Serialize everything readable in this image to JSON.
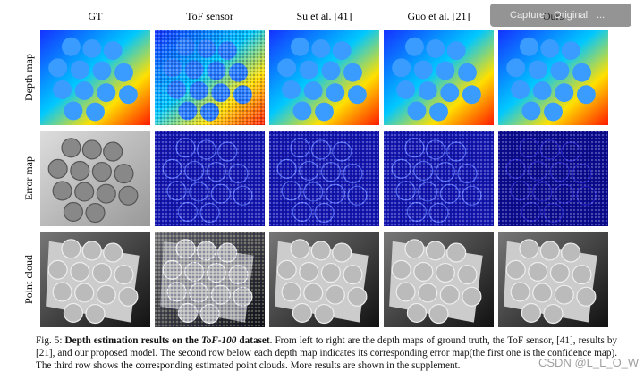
{
  "figure": {
    "columns": [
      "GT",
      "ToF sensor",
      "Su et al. [41]",
      "Guo et al. [21]",
      "Ours"
    ],
    "rows": [
      "Depth map",
      "Error map",
      "Point cloud"
    ]
  },
  "caption": {
    "label": "Fig. 5:",
    "bold_pre": "Depth estimation results on the",
    "bold_italic": "ToF-100",
    "bold_post": "dataset",
    "text": ". From left to right are the depth maps of ground truth, the ToF sensor, [41], results by [21], and our proposed model. The second row below each depth map indicates its corresponding error map(the first one is the confidence map). The third row shows the corresponding estimated point clouds. More results are shown in the supplement."
  },
  "overlay": {
    "capture": "Capture",
    "original": "Original",
    "more": "..."
  },
  "watermark": "CSDN @L_L_O_W"
}
